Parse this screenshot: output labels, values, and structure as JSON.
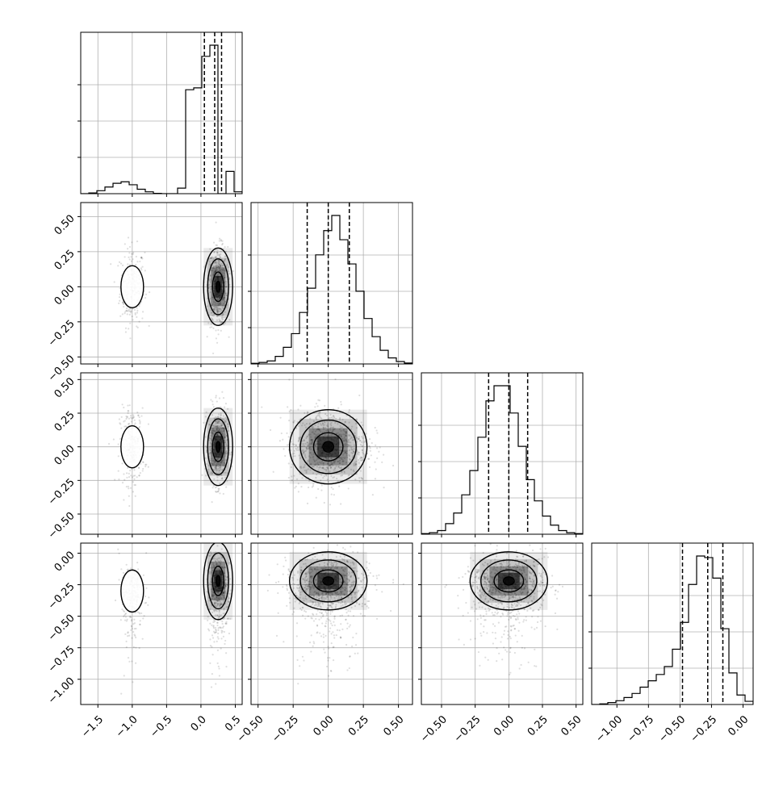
{
  "chart_data": {
    "type": "corner",
    "parameters": 4,
    "ranges": [
      [
        -1.75,
        0.6
      ],
      [
        -0.55,
        0.6
      ],
      [
        -0.65,
        0.55
      ],
      [
        -1.2,
        0.08
      ]
    ],
    "tick_labels": [
      [
        "−1.5",
        "−1.0",
        "−0.5",
        "0.0",
        "0.5"
      ],
      [
        "−0.50",
        "−0.25",
        "0.00",
        "0.25",
        "0.50"
      ],
      [
        "−0.50",
        "−0.25",
        "0.00",
        "0.25",
        "0.50"
      ],
      [
        "−1.00",
        "−0.75",
        "−0.50",
        "−0.25",
        "0.00"
      ]
    ],
    "tick_values": [
      [
        -1.5,
        -1.0,
        -0.5,
        0.0,
        0.5
      ],
      [
        -0.5,
        -0.25,
        0.0,
        0.25,
        0.5
      ],
      [
        -0.5,
        -0.25,
        0.0,
        0.25,
        0.5
      ],
      [
        -1.0,
        -0.75,
        -0.5,
        -0.25,
        0.0
      ]
    ],
    "histograms": [
      {
        "edges_start": -1.75,
        "bin_width": 0.1175,
        "counts": [
          0,
          2,
          8,
          18,
          28,
          32,
          24,
          12,
          5,
          1,
          0,
          0,
          15,
          280,
          285,
          370,
          400,
          0,
          60,
          5
        ],
        "quantiles": [
          0.05,
          0.2,
          0.3
        ]
      },
      {
        "edges_start": -0.55,
        "bin_width": 0.0575,
        "counts": [
          2,
          5,
          10,
          25,
          55,
          100,
          170,
          250,
          360,
          440,
          490,
          410,
          330,
          240,
          150,
          90,
          45,
          20,
          8,
          3
        ],
        "quantiles": [
          -0.15,
          0.0,
          0.15
        ]
      },
      {
        "edges_start": -0.65,
        "bin_width": 0.06,
        "counts": [
          2,
          5,
          12,
          35,
          70,
          130,
          210,
          320,
          440,
          490,
          490,
          400,
          290,
          180,
          110,
          60,
          30,
          12,
          5,
          2
        ],
        "quantiles": [
          -0.15,
          0.0,
          0.14
        ]
      },
      {
        "edges_start": -1.2,
        "bin_width": 0.064,
        "counts": [
          0,
          2,
          6,
          12,
          22,
          35,
          55,
          75,
          95,
          120,
          175,
          260,
          380,
          470,
          465,
          400,
          240,
          100,
          30,
          10
        ],
        "quantiles": [
          -0.48,
          -0.28,
          -0.16
        ]
      }
    ],
    "modes": [
      [
        -1.0,
        0.0,
        0.0,
        -0.3,
        0.1
      ],
      [
        0.25,
        0.0,
        0.0,
        -0.22,
        0.9
      ]
    ],
    "grid": true
  }
}
